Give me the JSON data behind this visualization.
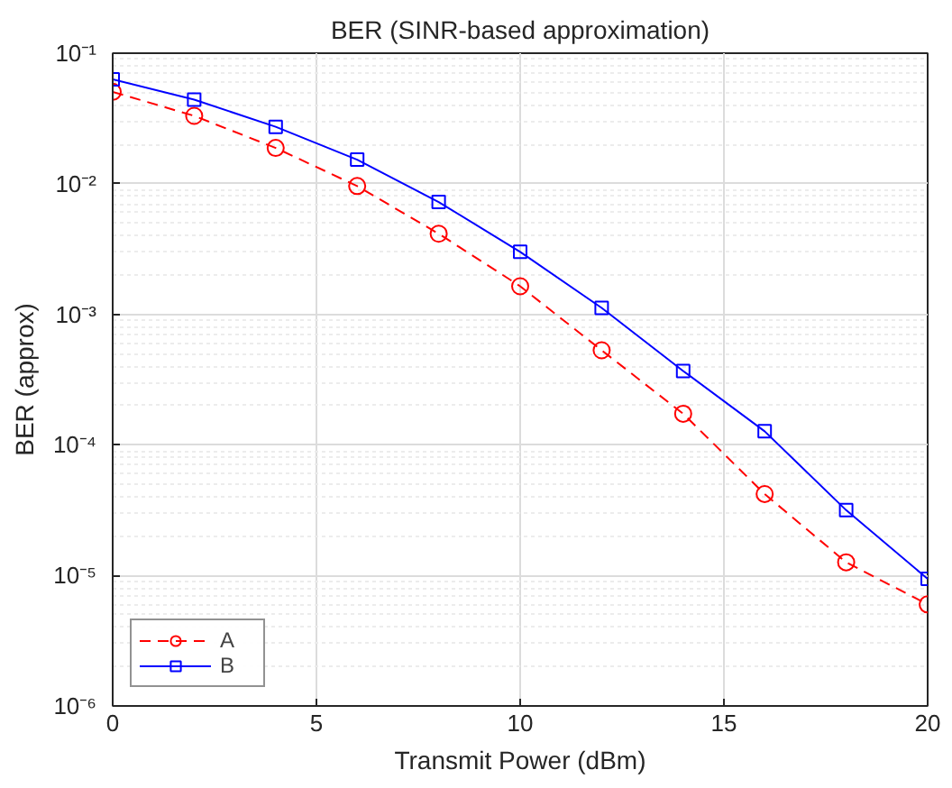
{
  "chart_data": {
    "type": "line",
    "title": "BER (SINR-based approximation)",
    "xlabel": "Transmit Power (dBm)",
    "ylabel": "BER (approx)",
    "x": [
      0,
      2,
      4,
      6,
      8,
      10,
      12,
      14,
      16,
      18,
      20
    ],
    "series": [
      {
        "name": "A",
        "color": "#ff0000",
        "marker": "circle",
        "line_style": "dashed",
        "values": [
          0.0506,
          0.0331,
          0.0188,
          0.0096,
          0.00414,
          0.00164,
          0.00053,
          0.000173,
          4.2e-05,
          1.26e-05,
          6e-06
        ]
      },
      {
        "name": "B",
        "color": "#0000ff",
        "marker": "square",
        "line_style": "solid",
        "values": [
          0.063,
          0.0441,
          0.0273,
          0.0153,
          0.00724,
          0.00301,
          0.00112,
          0.000368,
          0.000127,
          3.16e-05,
          9.4e-06
        ]
      }
    ],
    "log": "y",
    "xlim": [
      0,
      20
    ],
    "ylim": [
      1e-06,
      0.1
    ],
    "xticks": [
      0,
      5,
      10,
      15,
      20
    ],
    "yticks": [
      {
        "value": 1e-06,
        "label": "10⁻⁶"
      },
      {
        "value": 1e-05,
        "label": "10⁻⁵"
      },
      {
        "value": 0.0001,
        "label": "10⁻⁴"
      },
      {
        "value": 0.001,
        "label": "10⁻³"
      },
      {
        "value": 0.01,
        "label": "10⁻²"
      },
      {
        "value": 0.1,
        "label": "10⁻¹"
      }
    ],
    "grid": true,
    "legend": "bottom left"
  }
}
